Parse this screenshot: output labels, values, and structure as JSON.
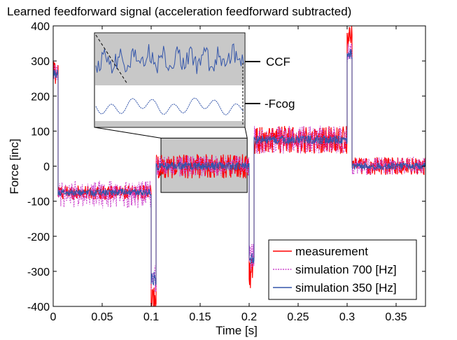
{
  "chart_data": {
    "type": "line",
    "title": "Learned feedforward signal (acceleration feedforward subtracted)",
    "xlabel": "Time [s]",
    "ylabel": "Force [inc]",
    "xlim": [
      0,
      0.38
    ],
    "ylim": [
      -400,
      400
    ],
    "x_ticks": [
      "0",
      "0.05",
      "0.1",
      "0.15",
      "0.2",
      "0.25",
      "0.3",
      "0.35"
    ],
    "y_ticks": [
      "400",
      "300",
      "200",
      "100",
      "0",
      "-100",
      "-200",
      "-300",
      "-400"
    ],
    "grid": false,
    "legend_position": "bottom-right",
    "series": [
      {
        "name": "measurement",
        "color": "#ff0000",
        "style": "solid",
        "segments": [
          {
            "t_start": 0.0,
            "t_end": 0.005,
            "level": 270,
            "noise": 40
          },
          {
            "t_start": 0.005,
            "t_end": 0.1,
            "level": -75,
            "noise": 20
          },
          {
            "t_start": 0.1,
            "t_end": 0.105,
            "level": -380,
            "noise": 40
          },
          {
            "t_start": 0.105,
            "t_end": 0.2,
            "level": 0,
            "noise": 35
          },
          {
            "t_start": 0.2,
            "t_end": 0.205,
            "level": -300,
            "noise": 50
          },
          {
            "t_start": 0.205,
            "t_end": 0.3,
            "level": 75,
            "noise": 40
          },
          {
            "t_start": 0.3,
            "t_end": 0.305,
            "level": 380,
            "noise": 40
          },
          {
            "t_start": 0.305,
            "t_end": 0.38,
            "level": 0,
            "noise": 25
          }
        ]
      },
      {
        "name": "simulation 700 [Hz]",
        "color": "#cc44cc",
        "style": "dashed",
        "segments": [
          {
            "t_start": 0.0,
            "t_end": 0.005,
            "level": 260,
            "noise": 30
          },
          {
            "t_start": 0.005,
            "t_end": 0.1,
            "level": -80,
            "noise": 40
          },
          {
            "t_start": 0.1,
            "t_end": 0.105,
            "level": -320,
            "noise": 40
          },
          {
            "t_start": 0.105,
            "t_end": 0.2,
            "level": 0,
            "noise": 30
          },
          {
            "t_start": 0.2,
            "t_end": 0.205,
            "level": -260,
            "noise": 40
          },
          {
            "t_start": 0.205,
            "t_end": 0.3,
            "level": 75,
            "noise": 40
          },
          {
            "t_start": 0.3,
            "t_end": 0.305,
            "level": 320,
            "noise": 30
          },
          {
            "t_start": 0.305,
            "t_end": 0.38,
            "level": 0,
            "noise": 25
          }
        ]
      },
      {
        "name": "simulation 350 [Hz]",
        "color": "#3355aa",
        "style": "solid",
        "segments": [
          {
            "t_start": 0.0,
            "t_end": 0.005,
            "level": 260,
            "noise": 15
          },
          {
            "t_start": 0.005,
            "t_end": 0.1,
            "level": -75,
            "noise": 10
          },
          {
            "t_start": 0.1,
            "t_end": 0.105,
            "level": -320,
            "noise": 20
          },
          {
            "t_start": 0.105,
            "t_end": 0.2,
            "level": 0,
            "noise": 12
          },
          {
            "t_start": 0.2,
            "t_end": 0.205,
            "level": -260,
            "noise": 20
          },
          {
            "t_start": 0.205,
            "t_end": 0.3,
            "level": 75,
            "noise": 12
          },
          {
            "t_start": 0.3,
            "t_end": 0.305,
            "level": 320,
            "noise": 15
          },
          {
            "t_start": 0.305,
            "t_end": 0.38,
            "level": 0,
            "noise": 10
          }
        ]
      }
    ],
    "zoom_region": {
      "x_range": [
        0.11,
        0.198
      ],
      "y_range": [
        -75,
        80
      ]
    },
    "inset": {
      "labels": [
        "CCF",
        "-Fcog"
      ],
      "background_color": "#c8c8c8"
    }
  }
}
